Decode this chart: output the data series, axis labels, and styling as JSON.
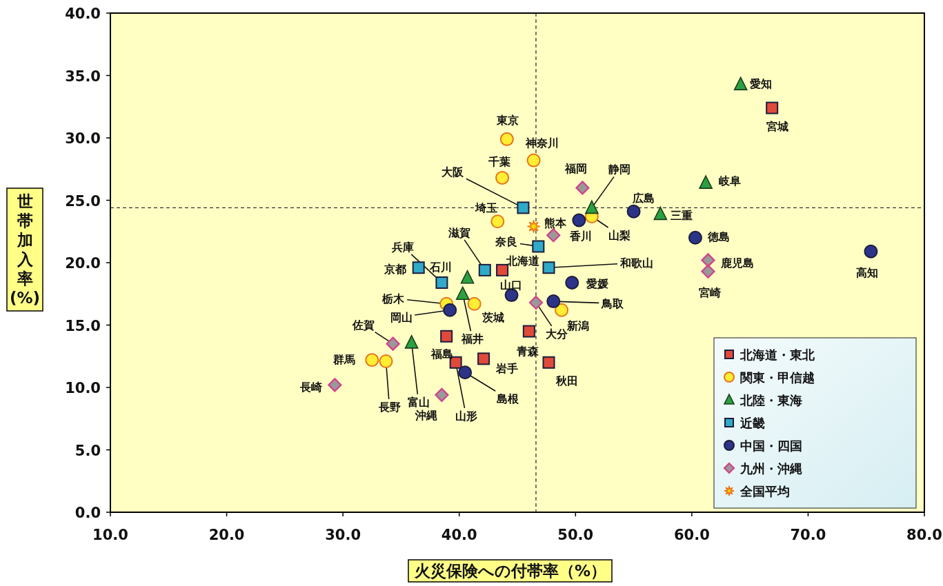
{
  "chart_data": {
    "type": "scatter",
    "xlabel": "火災保険への付帯率（%）",
    "ylabel": "世帯加入率(%)",
    "xlim": [
      10,
      80
    ],
    "ylim": [
      0,
      40
    ],
    "xticks": [
      {
        "value": 10,
        "label": "10.0"
      },
      {
        "value": 20,
        "label": "20.0"
      },
      {
        "value": 30,
        "label": "30.0"
      },
      {
        "value": 40,
        "label": "40.0"
      },
      {
        "value": 50,
        "label": "50.0"
      },
      {
        "value": 60,
        "label": "60.0"
      },
      {
        "value": 70,
        "label": "70.0"
      },
      {
        "value": 80,
        "label": "80.0"
      }
    ],
    "yticks": [
      {
        "value": 0,
        "label": "0.0"
      },
      {
        "value": 5,
        "label": "5.0"
      },
      {
        "value": 10,
        "label": "10.0"
      },
      {
        "value": 15,
        "label": "15.0"
      },
      {
        "value": 20,
        "label": "20.0"
      },
      {
        "value": 25,
        "label": "25.0"
      },
      {
        "value": 30,
        "label": "30.0"
      },
      {
        "value": 35,
        "label": "35.0"
      },
      {
        "value": 40,
        "label": "40.0"
      }
    ],
    "legend": "bottom right",
    "series": [
      {
        "name": "北海道・東北",
        "color": "#e04a3a",
        "marker": "square",
        "x": [
          43.7,
          46.0,
          42.1,
          66.9,
          47.7,
          39.7,
          38.9
        ],
        "values": [
          19.4,
          14.5,
          12.3,
          32.4,
          12.0,
          12.0,
          14.1
        ]
      },
      {
        "name": "関東・甲信越",
        "color": "#ffee33",
        "marker": "circle",
        "x": [
          41.3,
          38.9,
          32.5,
          43.3,
          43.7,
          44.1,
          46.4,
          51.4,
          33.7,
          48.8
        ],
        "values": [
          16.7,
          16.7,
          12.2,
          23.3,
          26.8,
          29.9,
          28.2,
          23.7,
          12.1,
          16.2
        ]
      },
      {
        "name": "北陸・東海",
        "color": "#2aa040",
        "marker": "triangle",
        "x": [
          35.9,
          40.7,
          40.3,
          61.2,
          51.4,
          64.2,
          57.3
        ],
        "values": [
          13.6,
          18.8,
          17.5,
          26.4,
          24.4,
          34.3,
          23.9
        ]
      },
      {
        "name": "近畿",
        "color": "#30aac8",
        "marker": "square",
        "x": [
          42.2,
          36.5,
          45.5,
          38.5,
          46.8,
          47.7
        ],
        "values": [
          19.4,
          19.6,
          24.4,
          18.4,
          21.3,
          19.6
        ]
      },
      {
        "name": "中国・四国",
        "color": "#2c3488",
        "marker": "circle",
        "x": [
          48.1,
          40.5,
          39.2,
          55.0,
          44.5,
          60.3,
          50.3,
          49.7,
          75.4
        ],
        "values": [
          16.9,
          11.2,
          16.2,
          24.1,
          17.4,
          22.0,
          23.4,
          18.4,
          20.9
        ]
      },
      {
        "name": "九州・沖縄",
        "color": "#d4408c",
        "marker": "diamond",
        "x": [
          50.6,
          34.3,
          29.3,
          48.1,
          46.6,
          61.4,
          61.4,
          38.5
        ],
        "values": [
          26.0,
          13.5,
          10.2,
          22.2,
          16.8,
          19.3,
          20.2,
          9.4
        ]
      },
      {
        "name": "全国平均",
        "color": "#ffdd00",
        "marker": "star",
        "x": [
          46.4
        ],
        "values": [
          22.9
        ]
      }
    ],
    "ref_lines": [
      {
        "axis": "x",
        "value": 46.6,
        "line_style": "dashed"
      },
      {
        "axis": "y",
        "value": 24.4,
        "line_style": "dashed"
      }
    ],
    "annotations": [
      {
        "text": "北海道",
        "x": 43.7,
        "y": 19.4
      },
      {
        "text": "青森",
        "x": 46.0,
        "y": 14.5
      },
      {
        "text": "岩手",
        "x": 42.1,
        "y": 12.3
      },
      {
        "text": "宮城",
        "x": 66.9,
        "y": 32.4
      },
      {
        "text": "秋田",
        "x": 47.7,
        "y": 12.0
      },
      {
        "text": "山形",
        "x": 39.7,
        "y": 12.0
      },
      {
        "text": "福島",
        "x": 38.9,
        "y": 14.1
      },
      {
        "text": "茨城",
        "x": 41.3,
        "y": 16.7
      },
      {
        "text": "栃木",
        "x": 38.9,
        "y": 16.7
      },
      {
        "text": "群馬",
        "x": 32.5,
        "y": 12.2
      },
      {
        "text": "埼玉",
        "x": 43.3,
        "y": 23.3
      },
      {
        "text": "千葉",
        "x": 43.7,
        "y": 26.8
      },
      {
        "text": "東京",
        "x": 44.1,
        "y": 29.9
      },
      {
        "text": "神奈川",
        "x": 46.4,
        "y": 28.2
      },
      {
        "text": "山梨",
        "x": 51.4,
        "y": 23.7
      },
      {
        "text": "長野",
        "x": 33.7,
        "y": 12.1
      },
      {
        "text": "新潟",
        "x": 48.8,
        "y": 16.2
      },
      {
        "text": "富山",
        "x": 35.9,
        "y": 13.6
      },
      {
        "text": "石川",
        "x": 40.7,
        "y": 18.8
      },
      {
        "text": "福井",
        "x": 40.3,
        "y": 17.5
      },
      {
        "text": "岐阜",
        "x": 61.2,
        "y": 26.4
      },
      {
        "text": "静岡",
        "x": 51.4,
        "y": 24.4
      },
      {
        "text": "愛知",
        "x": 64.2,
        "y": 34.3
      },
      {
        "text": "三重",
        "x": 57.3,
        "y": 23.9
      },
      {
        "text": "滋賀",
        "x": 42.2,
        "y": 19.4
      },
      {
        "text": "京都",
        "x": 36.5,
        "y": 19.6
      },
      {
        "text": "大阪",
        "x": 45.5,
        "y": 24.4
      },
      {
        "text": "兵庫",
        "x": 38.5,
        "y": 18.4
      },
      {
        "text": "奈良",
        "x": 46.8,
        "y": 21.3
      },
      {
        "text": "和歌山",
        "x": 47.7,
        "y": 19.6
      },
      {
        "text": "鳥取",
        "x": 48.1,
        "y": 16.9
      },
      {
        "text": "島根",
        "x": 40.5,
        "y": 11.2
      },
      {
        "text": "岡山",
        "x": 39.2,
        "y": 16.2
      },
      {
        "text": "広島",
        "x": 55.0,
        "y": 24.1
      },
      {
        "text": "山口",
        "x": 44.5,
        "y": 17.4
      },
      {
        "text": "徳島",
        "x": 60.3,
        "y": 22.0
      },
      {
        "text": "香川",
        "x": 50.3,
        "y": 23.4
      },
      {
        "text": "愛媛",
        "x": 49.7,
        "y": 18.4
      },
      {
        "text": "高知",
        "x": 75.4,
        "y": 20.9
      },
      {
        "text": "福岡",
        "x": 50.6,
        "y": 26.0
      },
      {
        "text": "佐賀",
        "x": 34.3,
        "y": 13.5
      },
      {
        "text": "長崎",
        "x": 29.3,
        "y": 10.2
      },
      {
        "text": "熊本",
        "x": 48.1,
        "y": 22.2
      },
      {
        "text": "大分",
        "x": 46.6,
        "y": 16.8
      },
      {
        "text": "宮崎",
        "x": 61.4,
        "y": 19.3
      },
      {
        "text": "鹿児島",
        "x": 61.4,
        "y": 20.2
      },
      {
        "text": "沖縄",
        "x": 38.5,
        "y": 9.4
      }
    ]
  }
}
